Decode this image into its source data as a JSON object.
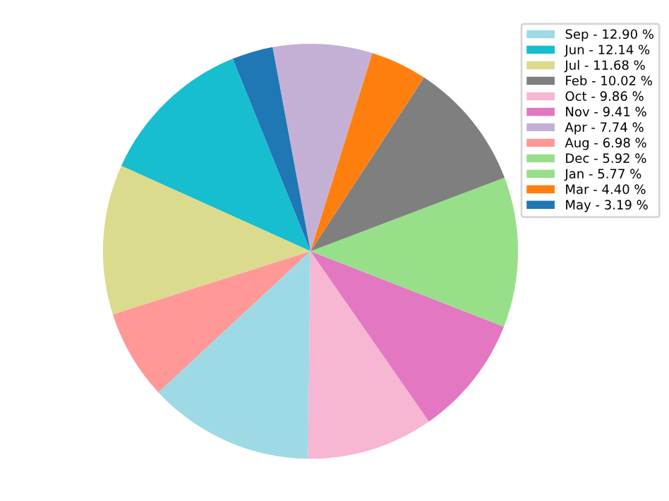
{
  "chart_data": {
    "type": "pie",
    "categories": [
      "Jan",
      "Feb",
      "Mar",
      "Apr",
      "May",
      "Jun",
      "Jul",
      "Aug",
      "Sep",
      "Oct",
      "Nov",
      "Dec"
    ],
    "values": [
      5.77,
      10.02,
      4.4,
      7.74,
      3.19,
      12.14,
      11.68,
      6.98,
      12.9,
      9.86,
      9.41,
      5.92
    ],
    "value_labels": [
      "5.77 %",
      "10.02 %",
      "4.40 %",
      "7.74 %",
      "3.19 %",
      "12.14 %",
      "11.68 %",
      "6.98 %",
      "12.90 %",
      "9.86 %",
      "9.41 %",
      "5.92 %"
    ],
    "colors": [
      "#98df8a",
      "#7f7f7f",
      "#ff7f0e",
      "#c5b0d5",
      "#1f77b4",
      "#17becf",
      "#dbdb8d",
      "#ff9896",
      "#9edae5",
      "#f7b6d2",
      "#e377c2",
      "#98df8a"
    ],
    "legend": "top right"
  }
}
